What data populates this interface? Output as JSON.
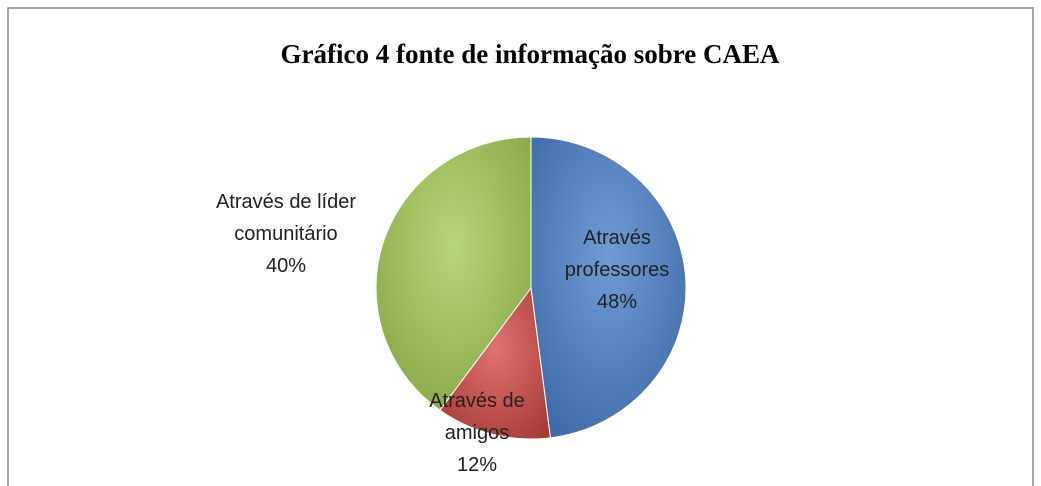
{
  "chart_data": {
    "type": "pie",
    "title": "Gráfico 4 fonte de informação sobre CAEA",
    "categories": [
      "Através professores",
      "Através de amigos",
      "Através de líder comunitário"
    ],
    "values": [
      48,
      12,
      40
    ],
    "value_labels": [
      "48%",
      "12%",
      "40%"
    ],
    "colors": [
      "#4f81bd",
      "#c0504d",
      "#9bbb59"
    ]
  }
}
